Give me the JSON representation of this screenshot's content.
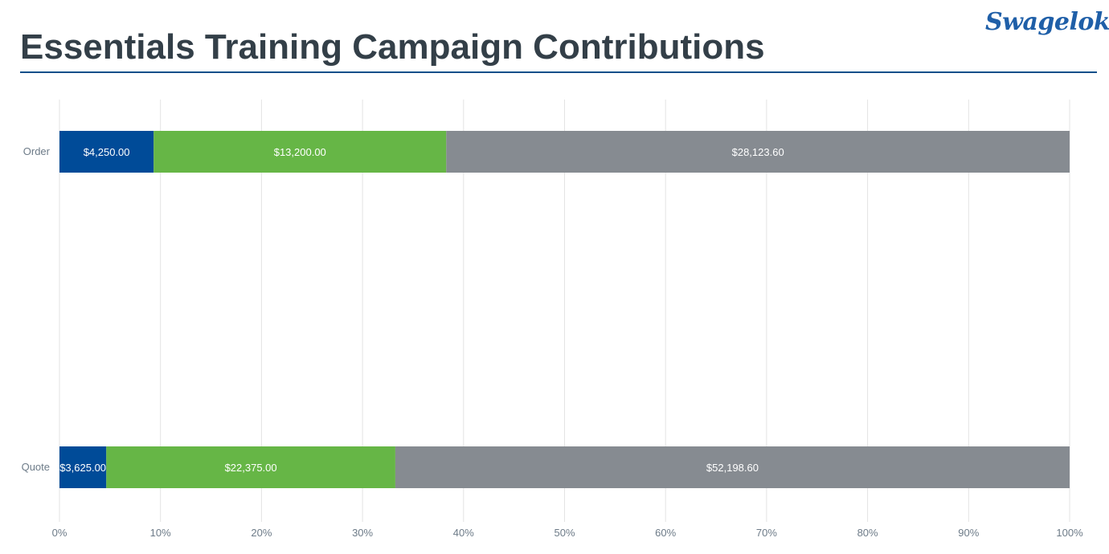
{
  "header": {
    "title": "Essentials Training Campaign Contributions",
    "logo_text": "Swagelok"
  },
  "colors": {
    "series1": "#004b98",
    "series2": "#66b646",
    "series3": "#868b91",
    "grid": "#e3e3e3",
    "tick_text": "#6d7b88",
    "title": "#333f48",
    "rule": "#0b4f8a"
  },
  "chart_data": {
    "type": "bar",
    "orientation": "horizontal",
    "stacked": "percent",
    "categories": [
      "Order",
      "Quote"
    ],
    "series": [
      {
        "values": [
          4250.0,
          3625.0
        ],
        "labels": [
          "$4,250.00",
          "$3,625.00"
        ]
      },
      {
        "values": [
          13200.0,
          22375.0
        ],
        "labels": [
          "$13,200.00",
          "$22,375.00"
        ]
      },
      {
        "values": [
          28123.6,
          52198.6
        ],
        "labels": [
          "$28,123.60",
          "$52,198.60"
        ]
      }
    ],
    "xlim": [
      0,
      100
    ],
    "xticks": [
      "0%",
      "10%",
      "20%",
      "30%",
      "40%",
      "50%",
      "60%",
      "70%",
      "80%",
      "90%",
      "100%"
    ],
    "grid": true,
    "legend": "none"
  }
}
